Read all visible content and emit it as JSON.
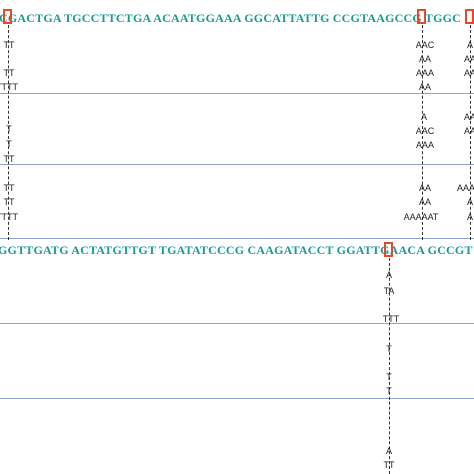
{
  "sequences": {
    "top": "CGACTGA TGCCTTCTGA ACAATGGAAA GGCATTATTG CCGTAAGCCG TGGC",
    "bottom": "GGTTGATG ACTATGTTGT TGATATCCCG CAAGATACCT GGATTGAACA GCCGT"
  },
  "labels": {
    "col1": {
      "a1": "TT",
      "a2": "TT",
      "a3": "TTTT",
      "b1": "T",
      "b2": "T",
      "b3": "TT",
      "c1": "TT",
      "c2": "TT",
      "c3": "TTTT"
    },
    "col2": {
      "a1": "AAC",
      "a2": "AA",
      "a3": "AAA",
      "a4": "AA",
      "b1": "A",
      "b2": "AAC",
      "b3": "AAA",
      "c1": "AA",
      "c2": "AA",
      "c3": "AAAAAT"
    },
    "col3": {
      "a1": "A",
      "a2": "AA",
      "a3": "AA",
      "b1": "AA",
      "b2": "AA",
      "c1": "AAA",
      "c2": "A",
      "c3": "A"
    },
    "col4": {
      "a1": "A",
      "a2": "TA",
      "a3": "TTT",
      "b1": "T",
      "b2": "T",
      "b3": "T",
      "c1": "A",
      "c2": "TT"
    }
  }
}
